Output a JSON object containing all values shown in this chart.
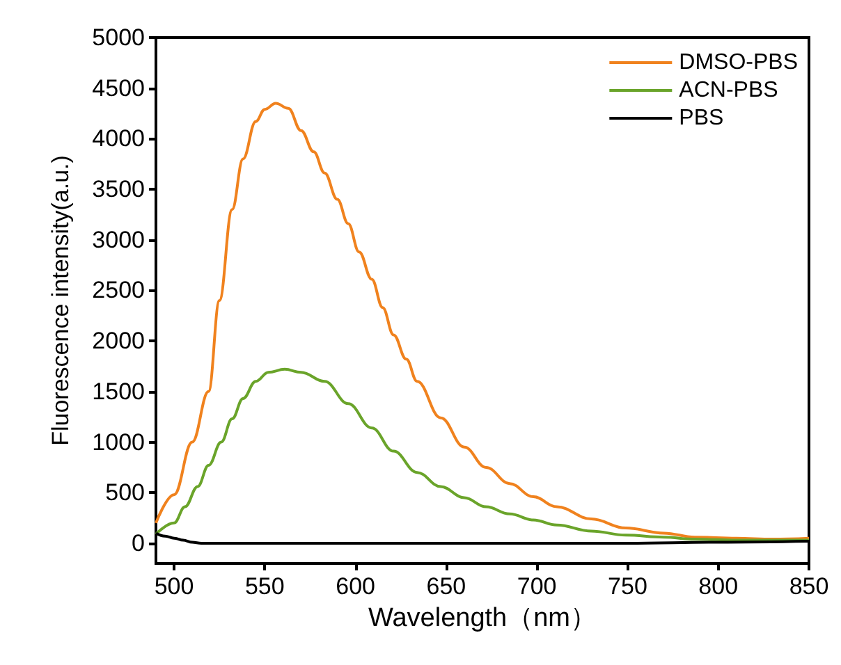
{
  "chart_data": {
    "type": "line",
    "xlabel": "Wavelength（nm）",
    "ylabel": "Fluorescence intensity(a.u.)",
    "xlim": [
      490,
      850
    ],
    "xticks": [
      500,
      550,
      600,
      650,
      700,
      750,
      800,
      850
    ],
    "ylim": [
      -200,
      5000
    ],
    "yticks": [
      0,
      500,
      1000,
      1500,
      2000,
      2500,
      3000,
      3500,
      4000,
      4500,
      5000
    ],
    "grid": false,
    "legend": "top right",
    "marker": "none",
    "line_style": "solid",
    "series": [
      {
        "name": "DMSO-PBS",
        "color": "#f0821e",
        "x": [
          490,
          500,
          510,
          519,
          525,
          532,
          538,
          545,
          550,
          556,
          563,
          570,
          577,
          583,
          590,
          596,
          602,
          609,
          615,
          621,
          628,
          634,
          647,
          660,
          672,
          685,
          698,
          711,
          730,
          749,
          770,
          787,
          810,
          830,
          850
        ],
        "values": [
          200,
          480,
          1000,
          1500,
          2400,
          3300,
          3800,
          4170,
          4290,
          4350,
          4300,
          4080,
          3870,
          3660,
          3400,
          3160,
          2880,
          2610,
          2330,
          2060,
          1820,
          1600,
          1240,
          950,
          750,
          590,
          460,
          360,
          240,
          150,
          100,
          60,
          50,
          40,
          50
        ]
      },
      {
        "name": "ACN-PBS",
        "color": "#6aa42a",
        "x": [
          490,
          500,
          506,
          513,
          519,
          526,
          532,
          538,
          545,
          552,
          561,
          570,
          583,
          596,
          609,
          621,
          634,
          647,
          660,
          672,
          685,
          698,
          711,
          730,
          749,
          770,
          787,
          810,
          830,
          850
        ],
        "values": [
          90,
          200,
          360,
          560,
          770,
          1000,
          1230,
          1430,
          1600,
          1690,
          1720,
          1690,
          1600,
          1380,
          1140,
          910,
          700,
          560,
          450,
          360,
          290,
          230,
          180,
          120,
          80,
          60,
          40,
          30,
          30,
          30
        ]
      },
      {
        "name": "PBS",
        "color": "#000000",
        "x": [
          490,
          495,
          500,
          505,
          510,
          515,
          520,
          530,
          550,
          600,
          650,
          700,
          750,
          800,
          850
        ],
        "values": [
          100,
          70,
          50,
          30,
          10,
          0,
          0,
          0,
          0,
          0,
          0,
          0,
          0,
          10,
          20
        ]
      }
    ]
  }
}
